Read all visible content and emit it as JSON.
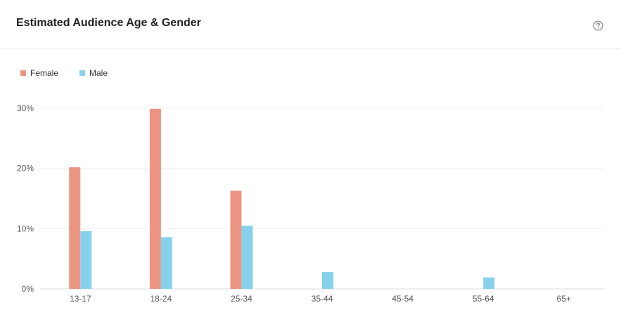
{
  "header": {
    "title": "Estimated Audience Age & Gender",
    "help_icon": "question-circle-icon"
  },
  "chart_data": {
    "type": "bar",
    "title": "Estimated Audience Age & Gender",
    "categories": [
      "13-17",
      "18-24",
      "25-34",
      "35-44",
      "45-54",
      "55-64",
      "65+"
    ],
    "series": [
      {
        "name": "Female",
        "color": "#ec9482",
        "values": [
          20.2,
          29.9,
          16.3,
          0,
          0,
          0,
          0
        ]
      },
      {
        "name": "Male",
        "color": "#87d1ec",
        "values": [
          9.6,
          8.6,
          10.5,
          2.8,
          0,
          1.9,
          0
        ]
      }
    ],
    "y_ticks": [
      "0%",
      "10%",
      "20%",
      "30%"
    ],
    "y_tick_values": [
      0,
      10,
      20,
      30
    ],
    "ylim": [
      0,
      30
    ],
    "grid": true,
    "legend_position": "top-left"
  }
}
